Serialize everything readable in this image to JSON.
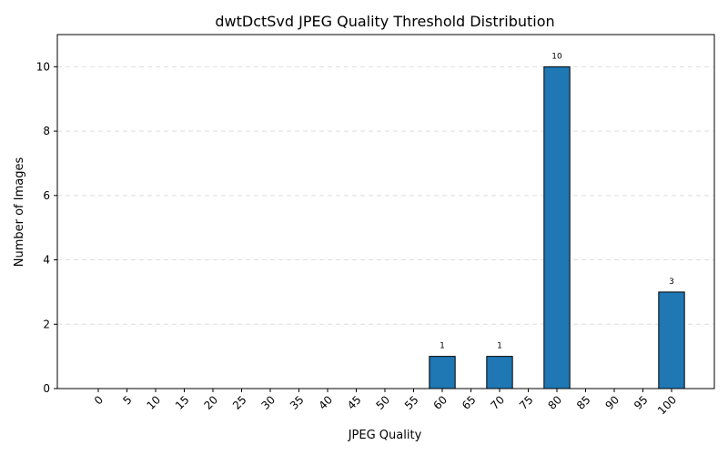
{
  "chart_data": {
    "type": "bar",
    "title": "dwtDctSvd JPEG Quality Threshold Distribution",
    "xlabel": "JPEG Quality",
    "ylabel": "Number of Images",
    "categories": [
      "0",
      "5",
      "10",
      "15",
      "20",
      "25",
      "30",
      "35",
      "40",
      "45",
      "50",
      "55",
      "60",
      "65",
      "70",
      "75",
      "80",
      "85",
      "90",
      "95",
      "100"
    ],
    "values": [
      0,
      0,
      0,
      0,
      0,
      0,
      0,
      0,
      0,
      0,
      0,
      0,
      1,
      0,
      1,
      0,
      10,
      0,
      0,
      0,
      3
    ],
    "data_labels": [
      "",
      "",
      "",
      "",
      "",
      "",
      "",
      "",
      "",
      "",
      "",
      "",
      "1",
      "",
      "1",
      "",
      "10",
      "",
      "",
      "",
      "3"
    ],
    "ylim": [
      0,
      11
    ],
    "yticks": [
      0,
      2,
      4,
      6,
      8,
      10
    ],
    "grid": "horizontal-dashed",
    "bar_color": "#1f77b4",
    "bar_edge_color": "#000000",
    "grid_color": "#dddddd",
    "axis_color": "#000000"
  }
}
